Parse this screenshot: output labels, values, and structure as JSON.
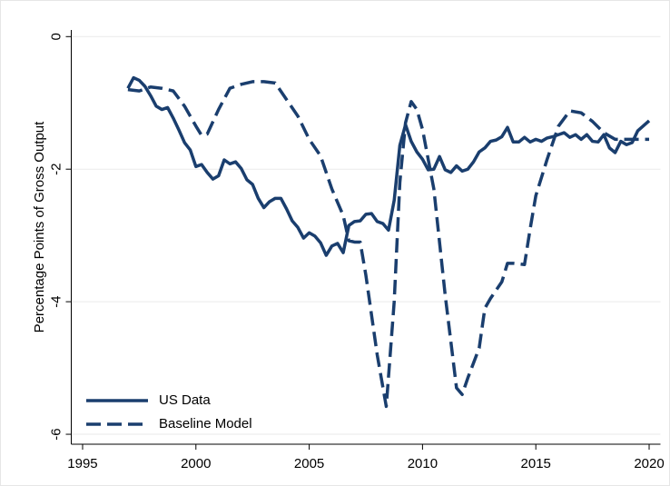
{
  "chart_data": {
    "type": "line",
    "ylabel": "Percentage Points of Gross Output",
    "xlim": [
      1994.5,
      2020.5
    ],
    "xticks": [
      1995,
      2000,
      2005,
      2010,
      2015,
      2020
    ],
    "ylim": [
      -6.15,
      0.1
    ],
    "yticks": [
      0,
      -2,
      -4,
      -6
    ],
    "grid": true,
    "legend": "lower left",
    "series": [
      {
        "name": "US Data",
        "color": "#1a3e6e",
        "dash": "solid",
        "x": [
          1997.0,
          1997.25,
          1997.5,
          1997.75,
          1998.0,
          1998.25,
          1998.5,
          1998.75,
          1999.0,
          1999.25,
          1999.5,
          1999.75,
          2000.0,
          2000.25,
          2000.5,
          2000.75,
          2001.0,
          2001.25,
          2001.5,
          2001.75,
          2002.0,
          2002.25,
          2002.5,
          2002.75,
          2003.0,
          2003.25,
          2003.5,
          2003.75,
          2004.0,
          2004.25,
          2004.5,
          2004.75,
          2005.0,
          2005.25,
          2005.5,
          2005.75,
          2006.0,
          2006.25,
          2006.5,
          2006.75,
          2007.0,
          2007.25,
          2007.5,
          2007.75,
          2008.0,
          2008.25,
          2008.5,
          2008.75,
          2009.0,
          2009.25,
          2009.5,
          2009.75,
          2010.0,
          2010.25,
          2010.5,
          2010.75,
          2011.0,
          2011.25,
          2011.5,
          2011.75,
          2012.0,
          2012.25,
          2012.5,
          2012.75,
          2013.0,
          2013.25,
          2013.5,
          2013.75,
          2014.0,
          2014.25,
          2014.5,
          2014.75,
          2015.0,
          2015.25,
          2015.5,
          2015.75,
          2016.0,
          2016.25,
          2016.5,
          2016.75,
          2017.0,
          2017.25,
          2017.5,
          2017.75,
          2018.0,
          2018.25,
          2018.5,
          2018.75,
          2019.0,
          2019.25,
          2019.5,
          2020.0
        ],
        "values": [
          -0.78,
          -0.62,
          -0.66,
          -0.75,
          -0.89,
          -1.05,
          -1.1,
          -1.07,
          -1.23,
          -1.41,
          -1.6,
          -1.71,
          -1.96,
          -1.93,
          -2.05,
          -2.15,
          -2.1,
          -1.86,
          -1.92,
          -1.89,
          -1.99,
          -2.16,
          -2.23,
          -2.44,
          -2.58,
          -2.49,
          -2.44,
          -2.44,
          -2.6,
          -2.78,
          -2.88,
          -3.04,
          -2.96,
          -3.01,
          -3.11,
          -3.3,
          -3.16,
          -3.12,
          -3.26,
          -2.85,
          -2.79,
          -2.78,
          -2.68,
          -2.67,
          -2.79,
          -2.82,
          -2.92,
          -2.47,
          -1.64,
          -1.33,
          -1.58,
          -1.74,
          -1.85,
          -2.01,
          -2.0,
          -1.81,
          -2.01,
          -2.05,
          -1.95,
          -2.03,
          -2.0,
          -1.89,
          -1.74,
          -1.68,
          -1.58,
          -1.56,
          -1.51,
          -1.37,
          -1.59,
          -1.59,
          -1.52,
          -1.59,
          -1.55,
          -1.58,
          -1.53,
          -1.51,
          -1.48,
          -1.45,
          -1.52,
          -1.48,
          -1.55,
          -1.48,
          -1.58,
          -1.59,
          -1.48,
          -1.68,
          -1.75,
          -1.58,
          -1.63,
          -1.6,
          -1.42,
          -1.27
        ]
      },
      {
        "name": "Baseline Model",
        "color": "#1a3e6e",
        "dash": "dashed",
        "x": [
          1997.0,
          1997.5,
          1998.0,
          1998.5,
          1999.0,
          1999.5,
          2000.0,
          2000.25,
          2000.5,
          2001.0,
          2001.5,
          2002.0,
          2002.5,
          2003.0,
          2003.5,
          2004.0,
          2004.5,
          2005.0,
          2005.5,
          2006.0,
          2006.5,
          2006.75,
          2007.0,
          2007.25,
          2007.5,
          2008.0,
          2008.4,
          2008.75,
          2009.0,
          2009.25,
          2009.5,
          2009.75,
          2010.0,
          2010.5,
          2011.0,
          2011.5,
          2011.75,
          2012.0,
          2012.5,
          2012.75,
          2013.0,
          2013.5,
          2013.75,
          2014.0,
          2014.5,
          2014.75,
          2015.0,
          2015.5,
          2016.0,
          2016.5,
          2017.0,
          2017.5,
          2018.0,
          2018.5,
          2019.0,
          2020.0
        ],
        "values": [
          -0.8,
          -0.82,
          -0.76,
          -0.78,
          -0.82,
          -1.05,
          -1.35,
          -1.49,
          -1.47,
          -1.1,
          -0.78,
          -0.72,
          -0.68,
          -0.68,
          -0.7,
          -0.95,
          -1.2,
          -1.55,
          -1.8,
          -2.3,
          -2.7,
          -3.08,
          -3.1,
          -3.1,
          -3.6,
          -4.8,
          -5.58,
          -4.0,
          -2.2,
          -1.3,
          -0.98,
          -1.1,
          -1.4,
          -2.3,
          -3.9,
          -5.3,
          -5.4,
          -5.15,
          -4.7,
          -4.1,
          -3.95,
          -3.7,
          -3.42,
          -3.42,
          -3.44,
          -2.9,
          -2.4,
          -1.85,
          -1.35,
          -1.12,
          -1.15,
          -1.28,
          -1.45,
          -1.55,
          -1.55,
          -1.55
        ]
      }
    ]
  }
}
